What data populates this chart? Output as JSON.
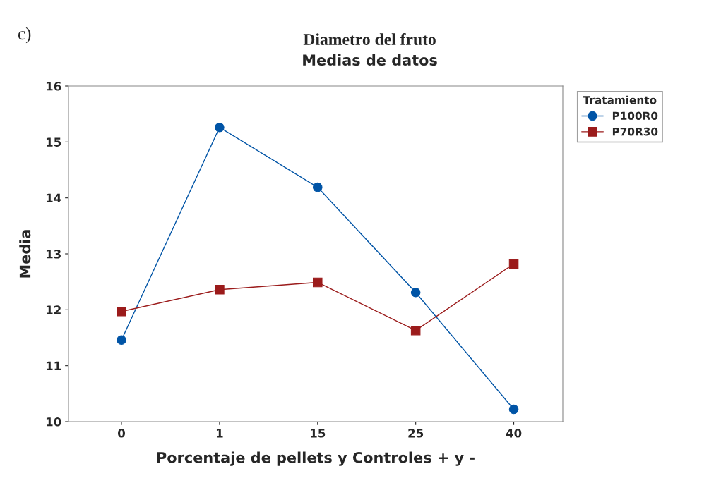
{
  "chart_data": {
    "type": "line",
    "title": "Diametro del fruto",
    "subtitle": "Medias de datos",
    "xlabel": "Porcentaje de pellets y Controles + y -",
    "ylabel": "Media",
    "legend_title": "Tratamiento",
    "annotations": [
      "c)"
    ],
    "categories": [
      "0",
      "1",
      "15",
      "25",
      "40"
    ],
    "series": [
      {
        "name": "P100R0",
        "color": "#0054a6",
        "marker": "circle",
        "values": [
          11.46,
          15.26,
          14.19,
          12.31,
          10.22
        ]
      },
      {
        "name": "P70R30",
        "color": "#9b1b1b",
        "marker": "square",
        "values": [
          11.97,
          12.36,
          12.49,
          11.63,
          12.82
        ]
      }
    ],
    "ylim": [
      10,
      16
    ],
    "yticks": [
      10,
      11,
      12,
      13,
      14,
      15,
      16
    ],
    "grid": false,
    "legend": "top right",
    "line_style": "solid"
  }
}
